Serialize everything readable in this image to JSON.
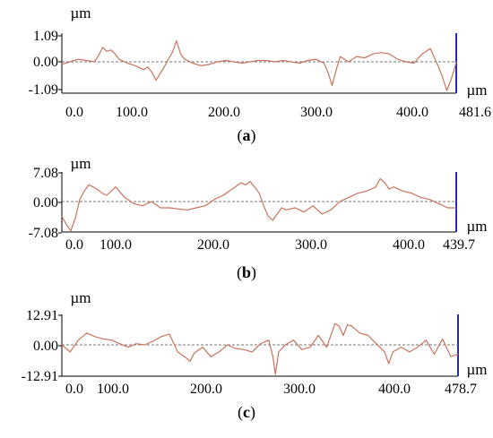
{
  "chart_data": [
    {
      "type": "line",
      "caption": "a",
      "unit_y": "µm",
      "unit_x": "µm",
      "y_ticks": [
        "1.09",
        "0.00",
        "-1.09"
      ],
      "x_ticks": [
        "0.0",
        "100.0",
        "200.0",
        "300.0",
        "400.0",
        "481.6"
      ],
      "xlim": [
        0,
        481.6
      ],
      "ylim": [
        -1.09,
        1.09
      ],
      "series": [
        {
          "x": [
            0,
            10,
            20,
            30,
            40,
            45,
            50,
            55,
            60,
            65,
            70,
            80,
            90,
            100,
            105,
            110,
            115,
            120,
            125,
            130,
            135,
            140,
            145,
            150,
            160,
            170,
            180,
            190,
            200,
            210,
            220,
            230,
            240,
            250,
            260,
            270,
            280,
            290,
            300,
            310,
            320,
            325,
            330,
            335,
            340,
            345,
            350,
            360,
            370,
            380,
            390,
            400,
            410,
            420,
            430,
            440,
            450,
            460,
            465,
            470,
            475,
            480,
            481.6
          ],
          "y": [
            -0.1,
            0.0,
            0.1,
            0.05,
            0.0,
            0.25,
            0.55,
            0.4,
            0.45,
            0.3,
            0.1,
            -0.05,
            -0.15,
            -0.3,
            -0.2,
            -0.4,
            -0.7,
            -0.45,
            -0.2,
            0.1,
            0.35,
            0.8,
            0.3,
            0.1,
            -0.05,
            -0.15,
            -0.1,
            0.0,
            0.05,
            0.0,
            -0.05,
            0.0,
            0.05,
            0.05,
            0.0,
            0.05,
            0.0,
            -0.05,
            0.05,
            0.1,
            -0.05,
            -0.4,
            -0.9,
            -0.3,
            0.2,
            0.1,
            0.0,
            0.2,
            0.15,
            0.3,
            0.35,
            0.3,
            0.1,
            0.0,
            -0.05,
            0.3,
            0.5,
            -0.2,
            -0.6,
            -1.09,
            -0.7,
            -0.2,
            0.0
          ]
        }
      ]
    },
    {
      "type": "line",
      "caption": "b",
      "unit_y": "µm",
      "unit_x": "µm",
      "y_ticks": [
        "7.08",
        "0.00",
        "-7.08"
      ],
      "x_ticks": [
        "0.0",
        "100.0",
        "200.0",
        "300.0",
        "400.0",
        "439.7"
      ],
      "xlim": [
        0,
        439.7
      ],
      "ylim": [
        -7.08,
        7.08
      ],
      "series": [
        {
          "x": [
            0,
            5,
            10,
            15,
            20,
            25,
            30,
            35,
            40,
            45,
            50,
            55,
            60,
            70,
            80,
            90,
            100,
            110,
            120,
            130,
            140,
            150,
            160,
            170,
            180,
            190,
            200,
            205,
            210,
            215,
            220,
            225,
            230,
            235,
            240,
            245,
            250,
            260,
            270,
            280,
            290,
            300,
            310,
            320,
            330,
            340,
            350,
            355,
            360,
            365,
            370,
            380,
            390,
            400,
            410,
            420,
            430,
            439.7
          ],
          "y": [
            -3.5,
            -5.5,
            -7.0,
            -4.0,
            0.5,
            2.5,
            4.0,
            3.5,
            2.8,
            2.0,
            1.5,
            2.5,
            3.5,
            1.0,
            -0.5,
            -1.0,
            0.0,
            -1.5,
            -1.5,
            -1.8,
            -2.0,
            -1.5,
            -1.0,
            0.5,
            1.5,
            3.0,
            4.5,
            4.0,
            4.8,
            3.5,
            2.0,
            -1.0,
            -3.5,
            -4.5,
            -3.0,
            -1.5,
            -2.0,
            -1.5,
            -2.5,
            -1.0,
            -3.0,
            -2.0,
            0.0,
            1.0,
            2.0,
            2.5,
            3.5,
            5.5,
            4.5,
            3.0,
            3.5,
            2.5,
            2.0,
            1.0,
            0.5,
            -0.5,
            -1.5,
            -1.5
          ]
        }
      ]
    },
    {
      "type": "line",
      "caption": "c",
      "unit_y": "µm",
      "unit_x": "µm",
      "y_ticks": [
        "12.91",
        "0.00",
        "-12.91"
      ],
      "x_ticks": [
        "0.0",
        "100.0",
        "200.0",
        "300.0",
        "400.0",
        "478.7"
      ],
      "xlim": [
        0,
        478.7
      ],
      "ylim": [
        -12.91,
        12.91
      ],
      "series": [
        {
          "x": [
            0,
            10,
            20,
            30,
            40,
            50,
            60,
            70,
            80,
            90,
            100,
            110,
            120,
            130,
            140,
            150,
            155,
            160,
            170,
            180,
            190,
            200,
            210,
            220,
            230,
            240,
            250,
            255,
            258,
            262,
            270,
            280,
            290,
            300,
            310,
            320,
            330,
            335,
            340,
            345,
            350,
            360,
            370,
            380,
            390,
            395,
            400,
            410,
            420,
            430,
            440,
            450,
            460,
            470,
            478.7
          ],
          "y": [
            0.0,
            -3.0,
            2.0,
            5.0,
            3.5,
            2.5,
            2.0,
            0.5,
            -1.0,
            0.5,
            0.0,
            1.5,
            3.5,
            4.5,
            -3.0,
            -5.5,
            -7.0,
            -3.5,
            -1.0,
            -5.0,
            -3.0,
            0.0,
            -1.5,
            -2.0,
            -3.0,
            0.5,
            2.0,
            -5.0,
            -12.5,
            -3.0,
            0.0,
            2.0,
            -2.0,
            -1.0,
            4.0,
            -1.0,
            9.0,
            8.0,
            4.0,
            8.5,
            8.0,
            5.0,
            4.0,
            0.5,
            -3.0,
            -8.0,
            -3.0,
            -1.0,
            -3.0,
            -1.0,
            2.0,
            -4.0,
            2.5,
            -5.0,
            -4.0
          ]
        }
      ]
    }
  ]
}
